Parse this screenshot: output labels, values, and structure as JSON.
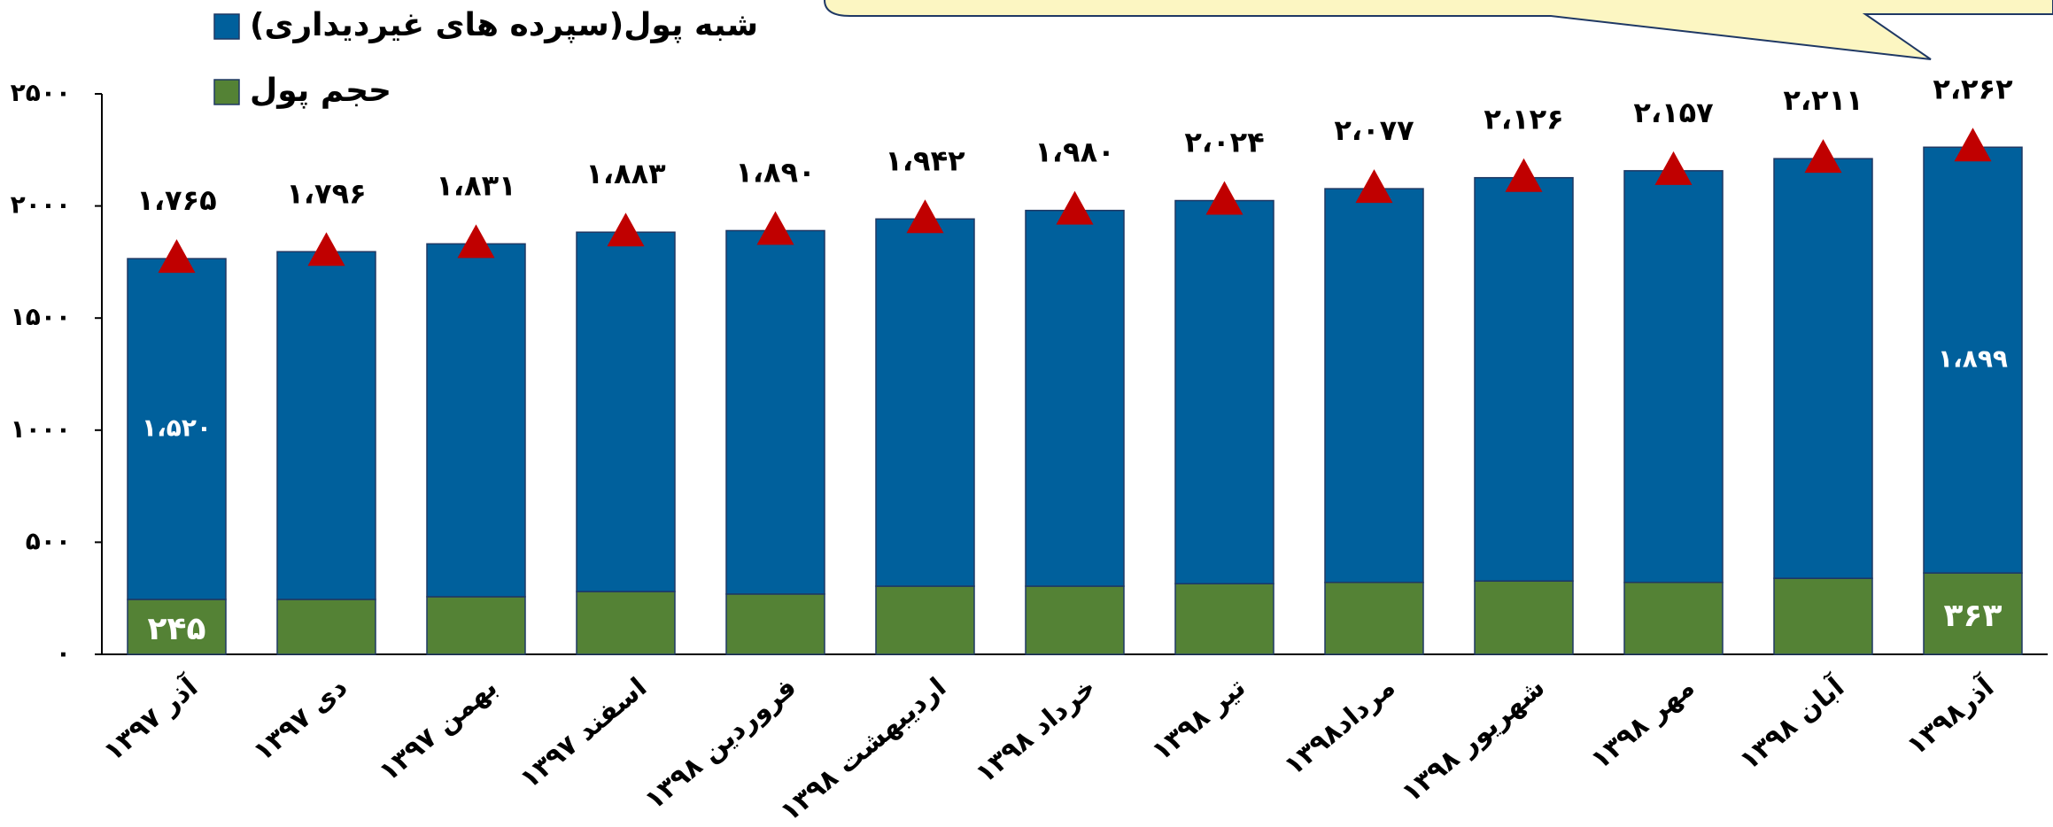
{
  "chart_data": {
    "type": "stacked_bar",
    "categories": [
      "آذر ۱۳۹۷",
      "دی ۱۳۹۷",
      "بهمن ۱۳۹۷",
      "اسفند ۱۳۹۷",
      "فروردین ۱۳۹۸",
      "اردیبهشت ۱۳۹۸",
      "خرداد ۱۳۹۸",
      "تیر ۱۳۹۸",
      "مرداد۱۳۹۸",
      "شهریور ۱۳۹۸",
      "مهر ۱۳۹۸",
      "آبان ۱۳۹۸",
      "آذر۱۳۹۸"
    ],
    "series": [
      {
        "name": "حجم پول",
        "color": "#548235",
        "values": [
          245,
          245,
          257,
          280,
          269,
          304,
          304,
          315,
          321,
          327,
          321,
          339,
          363
        ],
        "value_labels": [
          "۲۴۵",
          null,
          null,
          null,
          null,
          null,
          null,
          null,
          null,
          null,
          null,
          null,
          "۳۶۳"
        ]
      },
      {
        "name": "شبه پول(سپرده های غیردیداری)",
        "color": "#00609c",
        "values": [
          1520,
          1551,
          1574,
          1603,
          1621,
          1638,
          1676,
          1709,
          1756,
          1799,
          1836,
          1872,
          1899
        ],
        "value_labels": [
          "۱،۵۲۰",
          null,
          null,
          null,
          null,
          null,
          null,
          null,
          null,
          null,
          null,
          null,
          "۱،۸۹۹"
        ]
      }
    ],
    "totals": {
      "color": "#c00000",
      "values": [
        1765,
        1796,
        1831,
        1883,
        1890,
        1942,
        1980,
        2024,
        2077,
        2126,
        2157,
        2211,
        2262
      ],
      "value_labels": [
        "۱،۷۶۵",
        "۱،۷۹۶",
        "۱،۸۳۱",
        "۱،۸۸۳",
        "۱،۸۹۰",
        "۱،۹۴۲",
        "۱،۹۸۰",
        "۲،۰۲۴",
        "۲،۰۷۷",
        "۲،۱۲۶",
        "۲،۱۵۷",
        "۲،۲۱۱",
        "۲،۲۶۲"
      ]
    },
    "ylim": [
      0,
      2500
    ],
    "yticks": [
      {
        "value": 0,
        "label": "۰"
      },
      {
        "value": 500,
        "label": "۵۰۰"
      },
      {
        "value": 1000,
        "label": "۱۰۰۰"
      },
      {
        "value": 1500,
        "label": "۱۵۰۰"
      },
      {
        "value": 2000,
        "label": "۲۰۰۰"
      },
      {
        "value": 2500,
        "label": "۲۵۰۰"
      }
    ],
    "legend": "top-left",
    "grid": false
  }
}
